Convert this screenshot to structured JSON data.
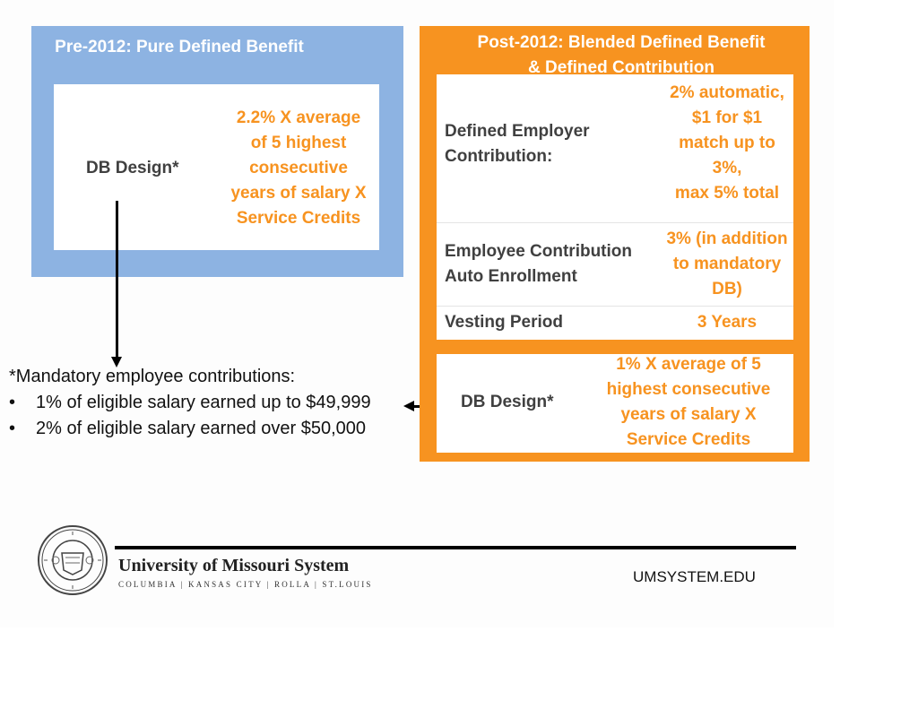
{
  "pre_2012": {
    "title": "Pre-2012: Pure Defined Benefit",
    "db_label": "DB Design*",
    "formula": "2.2% X average\nof 5 highest\nconsecutive\nyears of salary X\nService Credits"
  },
  "footnote": {
    "heading": "*Mandatory employee contributions:",
    "bullet": "•",
    "items": [
      "1% of eligible salary earned up to $49,999",
      "2% of eligible salary earned over $50,000"
    ]
  },
  "post_2012": {
    "title": "Post-2012: Blended Defined Benefit\n& Defined Contribution",
    "rows": [
      {
        "label": "Defined Employer\nContribution:",
        "value": "2% automatic,\n$1 for $1\nmatch up to\n3%,\nmax 5% total"
      },
      {
        "label": "Employee Contribution\nAuto Enrollment",
        "value": "3% (in addition\nto mandatory\nDB)"
      },
      {
        "label": "Vesting Period",
        "value": "3 Years"
      }
    ],
    "db_label": "DB Design*",
    "db_formula": "1% X average of 5\nhighest consecutive\nyears of salary X\nService Credits"
  },
  "footer": {
    "university": "University of Missouri System",
    "campuses": "COLUMBIA | KANSAS CITY | ROLLA | ST.LOUIS",
    "website": "UMSYSTEM.EDU",
    "seal_icon": "university-seal-icon"
  },
  "colors": {
    "blue_panel": "#8db3e2",
    "orange_panel": "#f79320",
    "dark_text": "#404040"
  }
}
